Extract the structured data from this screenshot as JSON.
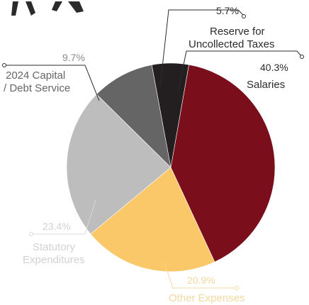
{
  "chart_data": {
    "type": "pie",
    "title": "",
    "slices": [
      {
        "label": "Salaries",
        "percent_label": "40.3%",
        "value": 40.3,
        "color": "#7a0f1b"
      },
      {
        "label": "Other Expenses",
        "percent_label": "20.9%",
        "value": 20.9,
        "color": "#fac868"
      },
      {
        "label": "Statutory Expenditures",
        "percent_label": "23.4%",
        "value": 23.4,
        "color": "#bdbdbd"
      },
      {
        "label": "2024 Capital / Debt Service",
        "percent_label": "9.7%",
        "value": 9.7,
        "color": "#656565"
      },
      {
        "label": "Reserve for Uncollected Taxes",
        "percent_label": "5.7%",
        "value": 5.7,
        "color": "#231f20"
      }
    ],
    "legend": "none",
    "label_lines": {
      "salaries": "Salaries",
      "other_expenses": "Other Expenses",
      "statutory_1": "Statutory",
      "statutory_2": "Expenditures",
      "capital_1": "2024 Capital",
      "capital_2": "/ Debt Service",
      "reserve_1": "Reserve for",
      "reserve_2": "Uncollected Taxes"
    }
  }
}
